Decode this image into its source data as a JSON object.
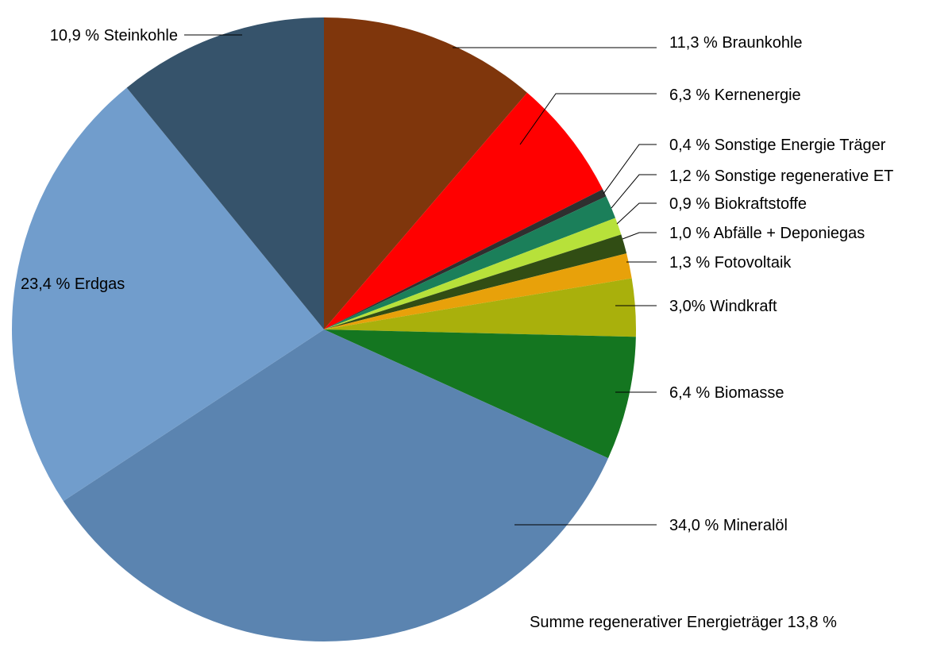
{
  "chart_data": {
    "type": "pie",
    "start_angle_deg": 0,
    "direction": "clockwise",
    "slices": [
      {
        "label": "11,3 % Braunkohle",
        "value": 11.3,
        "color": "#7f360c"
      },
      {
        "label": "6,3 % Kernenergie",
        "value": 6.3,
        "color": "#ff0000"
      },
      {
        "label": "0,4 % Sonstige Energie Träger",
        "value": 0.4,
        "color": "#2f2f2f"
      },
      {
        "label": "1,2 % Sonstige regenerative ET",
        "value": 1.2,
        "color": "#1b7f5a"
      },
      {
        "label": "0,9 % Biokraftstoffe",
        "value": 0.9,
        "color": "#b7e13a"
      },
      {
        "label": "1,0 % Abfälle + Deponiegas",
        "value": 1.0,
        "color": "#314d14"
      },
      {
        "label": "1,3 % Fotovoltaik",
        "value": 1.3,
        "color": "#e8a10a"
      },
      {
        "label": "3,0% Windkraft",
        "value": 3.0,
        "color": "#a9b00c"
      },
      {
        "label": "6,4 % Biomasse",
        "value": 6.4,
        "color": "#147620"
      },
      {
        "label": "34,0 % Mineralöl",
        "value": 34.0,
        "color": "#5b84b0"
      },
      {
        "label": "23,4 % Erdgas",
        "value": 23.4,
        "color": "#719dcc"
      },
      {
        "label": "10,9 % Steinkohle",
        "value": 10.9,
        "color": "#36536b"
      }
    ],
    "note": "Summe regenerativer Energieträger 13,8 %"
  }
}
